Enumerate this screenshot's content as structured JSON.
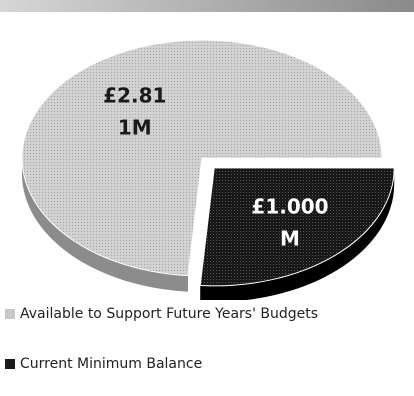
{
  "chart_data": {
    "type": "pie",
    "title": "",
    "units": "£",
    "slices": [
      {
        "name": "Available to Support Future Years' Budgets",
        "value": 2.811,
        "label_line1": "£2.81",
        "label_line2": "1M",
        "color": "#c8c8c8",
        "style": "dotted-light",
        "exploded": false
      },
      {
        "name": "Current Minimum Balance",
        "value": 1.0,
        "label_line1": "£1.000",
        "label_line2": "M",
        "color": "#1a1a1a",
        "style": "dotted-dark",
        "exploded": true
      }
    ],
    "legend_position": "bottom",
    "pie_3d": true
  }
}
